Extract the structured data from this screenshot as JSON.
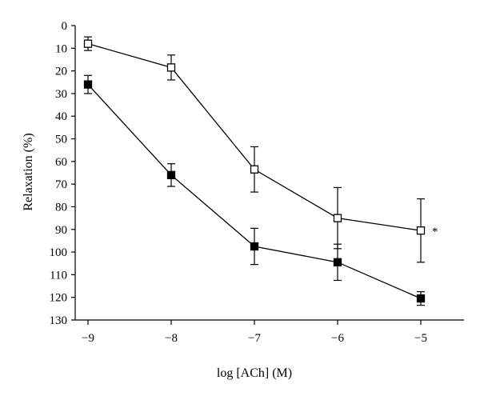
{
  "chart_data": {
    "type": "line",
    "xlabel": "log [ACh] (M)",
    "ylabel": "Relaxation (%)",
    "x": [
      -9,
      -8,
      -7,
      -6,
      -5
    ],
    "x_tick_labels": [
      "−9",
      "−8",
      "−7",
      "−6",
      "−5"
    ],
    "y_ticks": [
      0,
      10,
      20,
      30,
      40,
      50,
      60,
      70,
      80,
      90,
      100,
      110,
      120,
      130
    ],
    "y_tick_labels": [
      "0",
      "10",
      "20",
      "30",
      "40",
      "50",
      "60",
      "70",
      "80",
      "90",
      "100",
      "110",
      "120",
      "130"
    ],
    "xlim": [
      -9,
      -4.5
    ],
    "ylim": [
      0,
      130
    ],
    "y_inverted": true,
    "grid": false,
    "series": [
      {
        "marker": "open-square",
        "values": [
          8,
          18.5,
          63.5,
          85,
          90.5
        ],
        "errors": [
          3,
          5.5,
          10,
          13.5,
          14
        ]
      },
      {
        "marker": "filled-square",
        "values": [
          26,
          66,
          97.5,
          104.5,
          120.5
        ],
        "errors": [
          4,
          5,
          8,
          8,
          3
        ]
      }
    ],
    "annotations": [
      {
        "text": "*",
        "x": -5,
        "series": 0
      }
    ]
  }
}
